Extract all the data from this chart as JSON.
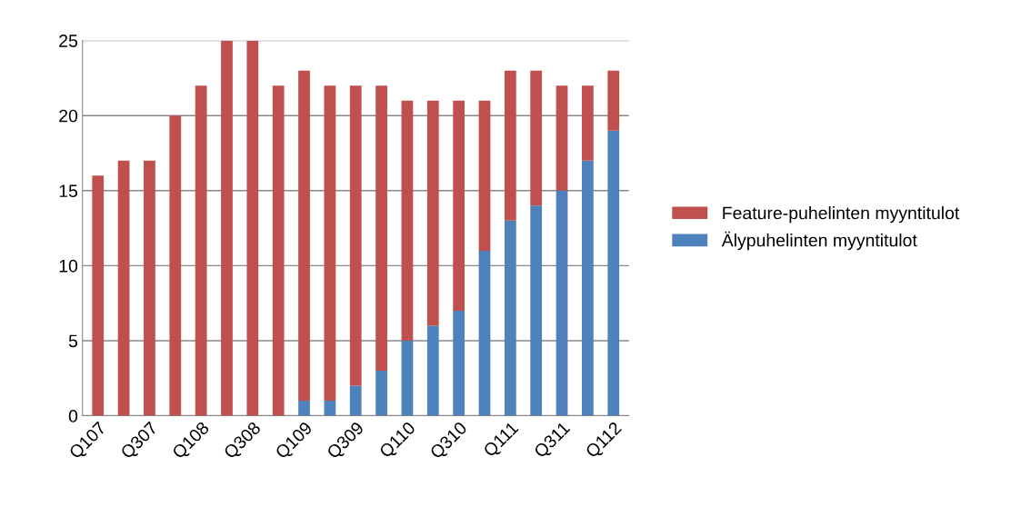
{
  "chart_data": {
    "type": "bar",
    "stacked": true,
    "categories": [
      "Q107",
      null,
      "Q307",
      null,
      "Q108",
      null,
      "Q308",
      null,
      "Q109",
      null,
      "Q309",
      null,
      "Q110",
      null,
      "Q310",
      null,
      "Q111",
      null,
      "Q311",
      null,
      "Q112"
    ],
    "series": [
      {
        "name": "Älypuhelinten myyntitulot",
        "color": "#4f81bd",
        "values": [
          0,
          0,
          0,
          0,
          0,
          0,
          0,
          0,
          1,
          1,
          2,
          3,
          5,
          6,
          7,
          11,
          13,
          14,
          15,
          17,
          19
        ]
      },
      {
        "name": "Feature-puhelinten myyntitulot",
        "color": "#c0504d",
        "values": [
          16,
          17,
          17,
          20,
          22,
          25,
          25,
          22,
          22,
          21,
          20,
          19,
          16,
          15,
          14,
          10,
          10,
          9,
          7,
          5,
          4
        ]
      }
    ],
    "ylim": [
      0,
      25
    ],
    "yticks": [
      0,
      5,
      10,
      15,
      20,
      25
    ],
    "grid": "y",
    "legend": "right"
  }
}
